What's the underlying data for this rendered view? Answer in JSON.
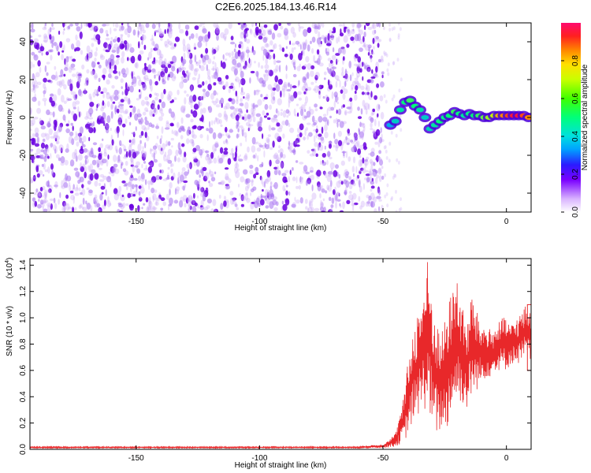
{
  "title": "C2E6.2025.184.13.46.R14",
  "colors": {
    "signal": "#e8282a",
    "spectrum_low": "#b57cf0",
    "spectrum_core": "#6a00e0"
  },
  "chart_data": [
    {
      "type": "heatmap",
      "xlabel": "Height of straight line (km)",
      "ylabel": "Frequency (Hz)",
      "xlim": [
        -193,
        10
      ],
      "ylim": [
        -50,
        50
      ],
      "xticks": [
        -150,
        -100,
        -50,
        0
      ],
      "yticks": [
        -40,
        -20,
        0,
        20,
        40
      ],
      "grid": false,
      "noise_band_x": [
        -193,
        -50
      ],
      "signal_track": {
        "x": [
          -47,
          -45,
          -43,
          -41,
          -39,
          -37,
          -35,
          -33,
          -31,
          -29,
          -27,
          -25,
          -23,
          -21,
          -19,
          -17,
          -15,
          -13,
          -11,
          -9,
          -7,
          -5,
          -3,
          -1,
          1,
          3,
          5,
          7,
          9
        ],
        "y": [
          -4,
          -2,
          4,
          8,
          9,
          6,
          4,
          0,
          -6,
          -4,
          -2,
          0,
          1,
          3,
          2,
          1,
          2,
          1,
          1,
          0,
          0,
          1,
          1,
          1,
          1,
          1,
          1,
          1,
          0
        ],
        "amp": [
          0.35,
          0.4,
          0.45,
          0.5,
          0.55,
          0.5,
          0.45,
          0.4,
          0.42,
          0.45,
          0.5,
          0.48,
          0.5,
          0.55,
          0.5,
          0.45,
          0.48,
          0.5,
          0.55,
          0.6,
          0.65,
          0.7,
          0.8,
          0.85,
          0.9,
          0.95,
          0.95,
          0.9,
          0.85
        ]
      },
      "colorbar": {
        "label": "Normalized spectral amplitude",
        "range": [
          0,
          1
        ],
        "ticks": [
          "0.0",
          "0.2",
          "0.4",
          "0.6",
          "0.8"
        ],
        "tick_values": [
          0,
          0.2,
          0.4,
          0.6,
          0.8
        ]
      }
    },
    {
      "type": "line",
      "xlabel": "Height of straight line (km)",
      "ylabel": "SNR (10 * v/v)",
      "y_multiplier_label": "(x10",
      "y_multiplier_exp": "4",
      "y_multiplier_close": ")",
      "xlim": [
        -193,
        10
      ],
      "ylim": [
        0,
        1.45
      ],
      "xticks": [
        -150,
        -100,
        -50,
        0
      ],
      "yticks": [
        "0.0",
        "0.2",
        "0.4",
        "0.6",
        "0.8",
        "1.0",
        "1.2",
        "1.4"
      ],
      "ytick_values": [
        0,
        0.2,
        0.4,
        0.6,
        0.8,
        1.0,
        1.2,
        1.4
      ],
      "grid": false,
      "series": [
        {
          "x": [
            -193,
            -150,
            -100,
            -60,
            -50,
            -45,
            -42,
            -40,
            -38,
            -36,
            -34,
            -33,
            -32,
            -30,
            -28,
            -26,
            -24,
            -22,
            -20,
            -18,
            -16,
            -14,
            -12,
            -10,
            -8,
            -6,
            -4,
            -2,
            0,
            2,
            4,
            6,
            8,
            10
          ],
          "y": [
            0.01,
            0.01,
            0.01,
            0.01,
            0.02,
            0.05,
            0.15,
            0.35,
            0.55,
            0.75,
            1.0,
            1.2,
            1.4,
            0.9,
            0.7,
            0.6,
            0.8,
            0.9,
            1.1,
            0.8,
            0.6,
            1.0,
            0.9,
            0.8,
            0.7,
            0.75,
            0.8,
            0.85,
            0.85,
            0.85,
            0.9,
            0.9,
            1.0,
            0.9
          ],
          "lo": [
            0.01,
            0.01,
            0.01,
            0.01,
            0.01,
            0.02,
            0.05,
            0.1,
            0.2,
            0.25,
            0.3,
            0.3,
            0.35,
            0.15,
            0.1,
            0.15,
            0.15,
            0.3,
            0.35,
            0.35,
            0.3,
            0.4,
            0.45,
            0.5,
            0.55,
            0.55,
            0.6,
            0.6,
            0.6,
            0.65,
            0.65,
            0.65,
            0.7,
            0.6
          ],
          "hi": [
            0.02,
            0.02,
            0.02,
            0.02,
            0.04,
            0.12,
            0.35,
            0.65,
            0.9,
            1.05,
            1.2,
            1.3,
            1.45,
            1.15,
            0.95,
            0.9,
            1.1,
            1.2,
            1.35,
            1.1,
            0.95,
            1.2,
            1.05,
            0.95,
            0.95,
            0.9,
            0.95,
            1.0,
            1.0,
            0.95,
            1.0,
            1.05,
            1.1,
            1.1
          ]
        }
      ]
    }
  ]
}
